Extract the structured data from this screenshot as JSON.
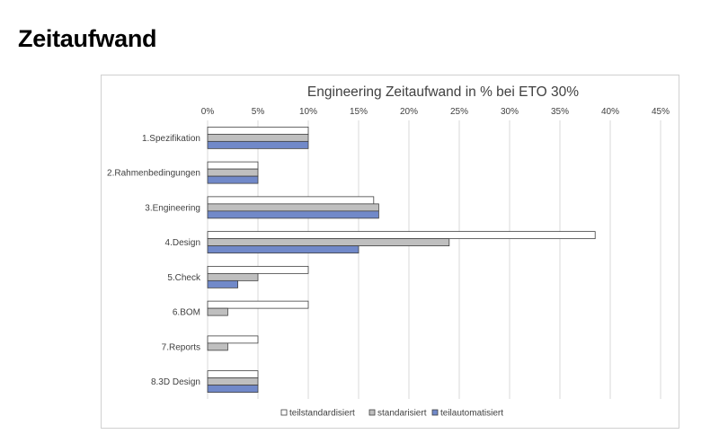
{
  "page": {
    "title": "Zeitaufwand"
  },
  "chart_data": {
    "type": "bar",
    "orientation": "horizontal",
    "title": "Engineering Zeitaufwand in % bei ETO 30%",
    "xlabel": "",
    "ylabel": "",
    "xlim": [
      0,
      45
    ],
    "x_ticks": [
      0,
      5,
      10,
      15,
      20,
      25,
      30,
      35,
      40,
      45
    ],
    "x_tick_labels": [
      "0%",
      "5%",
      "10%",
      "15%",
      "20%",
      "25%",
      "30%",
      "35%",
      "40%",
      "45%"
    ],
    "x_axis_position": "top",
    "grid": true,
    "legend_position": "bottom",
    "categories": [
      "1.Spezifikation",
      "2.Rahmenbedingungen",
      "3.Engineering",
      "4.Design",
      "5.Check",
      "6.BOM",
      "7.Reports",
      "8.3D Design"
    ],
    "series": [
      {
        "name": "teilstandardisiert",
        "color": "#ffffff",
        "values": [
          10,
          5,
          16.5,
          38.5,
          10,
          10,
          5,
          5
        ]
      },
      {
        "name": "standarisiert",
        "color": "#bfbfbf",
        "values": [
          10,
          5,
          17,
          24,
          5,
          2,
          2,
          5
        ]
      },
      {
        "name": "teilautomatisiert",
        "color": "#7189c9",
        "values": [
          10,
          5,
          17,
          15,
          3,
          0,
          0,
          5
        ]
      }
    ],
    "bar_outline_color": "#404040",
    "gridline_color": "#d9d9d9"
  }
}
